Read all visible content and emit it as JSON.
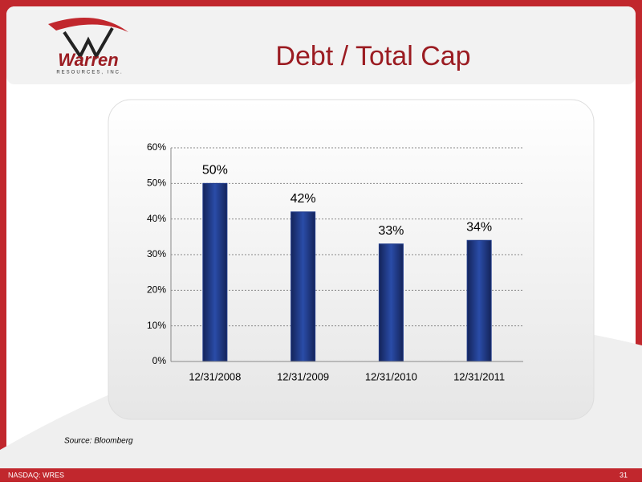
{
  "slide": {
    "title": "Debt / Total Cap",
    "logo_name": "Warren",
    "logo_sub": "RESOURCES, INC.",
    "source": "Source: Bloomberg",
    "footer": "NASDAQ: WRES",
    "page_number": "31"
  },
  "chart_data": {
    "type": "bar",
    "categories": [
      "12/31/2008",
      "12/31/2009",
      "12/31/2010",
      "12/31/2011"
    ],
    "values": [
      50,
      42,
      33,
      34
    ],
    "value_labels": [
      "50%",
      "42%",
      "33%",
      "34%"
    ],
    "color": "#1f3a8a",
    "ylim": [
      0,
      60
    ],
    "yticks": [
      {
        "value": 0,
        "label": "0%"
      },
      {
        "value": 10,
        "label": "10%"
      },
      {
        "value": 20,
        "label": "20%"
      },
      {
        "value": 30,
        "label": "30%"
      },
      {
        "value": 40,
        "label": "40%"
      },
      {
        "value": 50,
        "label": "50%"
      },
      {
        "value": 60,
        "label": "60%"
      }
    ],
    "grid": true
  }
}
